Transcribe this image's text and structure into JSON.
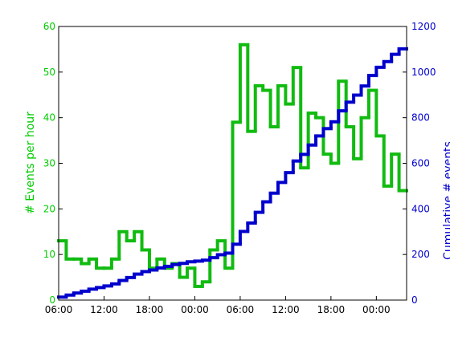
{
  "chart_data": {
    "type": "step",
    "ylabel": "# Events per hour",
    "y2label": "Cumulative # events",
    "x": [
      0,
      1,
      2,
      3,
      4,
      5,
      6,
      7,
      8,
      9,
      10,
      11,
      12,
      13,
      14,
      15,
      16,
      17,
      18,
      19,
      20,
      21,
      22,
      23,
      24,
      25,
      26,
      27,
      28,
      29,
      30,
      31,
      32,
      33,
      34,
      35,
      36,
      37,
      38,
      39,
      40,
      41,
      42,
      43,
      44,
      45
    ],
    "xlim": [
      0,
      46
    ],
    "xticks": [
      {
        "value": 0,
        "label": "06:00"
      },
      {
        "value": 6,
        "label": "12:00"
      },
      {
        "value": 12,
        "label": "18:00"
      },
      {
        "value": 18,
        "label": "00:00"
      },
      {
        "value": 24,
        "label": "06:00"
      },
      {
        "value": 30,
        "label": "12:00"
      },
      {
        "value": 36,
        "label": "18:00"
      },
      {
        "value": 42,
        "label": "00:00"
      }
    ],
    "ylim": [
      0,
      60
    ],
    "yticks": [
      0,
      10,
      20,
      30,
      40,
      50,
      60
    ],
    "y2lim": [
      0,
      1200
    ],
    "y2ticks": [
      0,
      200,
      400,
      600,
      800,
      1000,
      1200
    ],
    "ycolor": "#00cc00",
    "y2color": "#0000cc",
    "series": [
      {
        "name": "Events per hour",
        "color": "#11bb11",
        "values": [
          13,
          9,
          9,
          8,
          9,
          7,
          7,
          9,
          15,
          13,
          15,
          11,
          7,
          9,
          7,
          8,
          5,
          7,
          3,
          4,
          11,
          13,
          7,
          39,
          56,
          37,
          47,
          46,
          38,
          47,
          43,
          51,
          29,
          41,
          40,
          32,
          30,
          48,
          38,
          31,
          40,
          46,
          36,
          25,
          32,
          24
        ]
      },
      {
        "name": "Cumulative events",
        "color": "#0000cc",
        "axis": "y2",
        "values": [
          13,
          22,
          31,
          39,
          48,
          55,
          62,
          71,
          86,
          99,
          114,
          125,
          132,
          141,
          148,
          156,
          161,
          168,
          171,
          175,
          186,
          199,
          206,
          245,
          301,
          338,
          385,
          431,
          469,
          516,
          559,
          610,
          639,
          680,
          720,
          752,
          782,
          830,
          868,
          899,
          939,
          985,
          1021,
          1046,
          1078,
          1102
        ]
      }
    ]
  }
}
